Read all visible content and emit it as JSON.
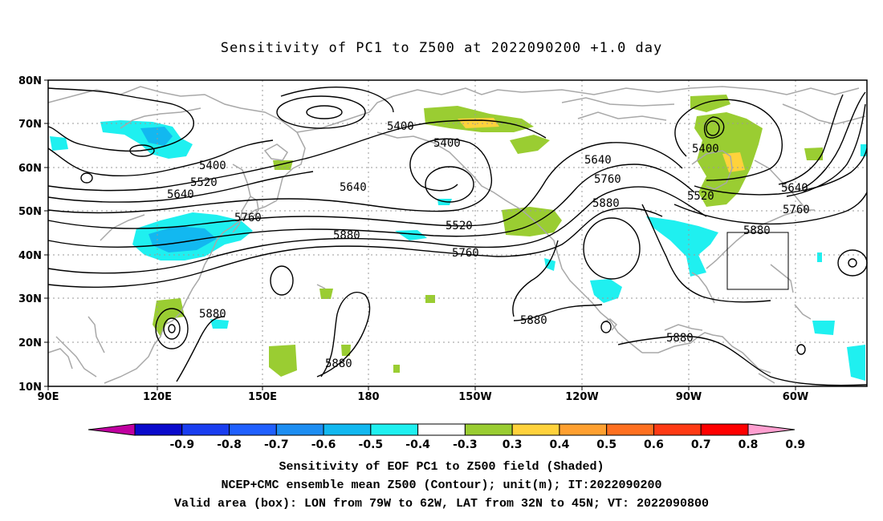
{
  "title": "Sensitivity of PC1 to Z500 at 2022090200 +1.0 day",
  "lat_labels": [
    "80N",
    "70N",
    "60N",
    "50N",
    "40N",
    "30N",
    "20N",
    "10N"
  ],
  "lon_labels": [
    "90E",
    "120E",
    "150E",
    "180",
    "150W",
    "120W",
    "90W",
    "60W"
  ],
  "contour_labels": [
    "5400",
    "5400",
    "5400",
    "5400",
    "5520",
    "5520",
    "5520",
    "5640",
    "5640",
    "5640",
    "5640",
    "5760",
    "5760",
    "5760",
    "5760",
    "5880",
    "5880",
    "5880",
    "5880",
    "5880",
    "5880",
    "5880"
  ],
  "colorbar": {
    "ticks": [
      "-0.9",
      "-0.8",
      "-0.7",
      "-0.6",
      "-0.5",
      "-0.4",
      "-0.3",
      "0.3",
      "0.4",
      "0.5",
      "0.6",
      "0.7",
      "0.8",
      "0.9"
    ],
    "colors": [
      "#c000a0",
      "#0a0acc",
      "#1a3ef0",
      "#2060ff",
      "#1d8ef2",
      "#12b8f0",
      "#1ff0f0",
      "#ffffff",
      "#9acd32",
      "#ffd23c",
      "#ffa030",
      "#ff7020",
      "#ff3a14",
      "#ff0000",
      "#ff9fd0"
    ]
  },
  "legend_caption": [
    "Sensitivity of EOF PC1 to Z500 field (Shaded)",
    "NCEP+CMC ensemble mean Z500 (Contour); unit(m); IT:2022090200",
    "Valid area (box): LON from 79W to 62W, LAT from 32N to 45N; VT: 2022090800"
  ]
}
